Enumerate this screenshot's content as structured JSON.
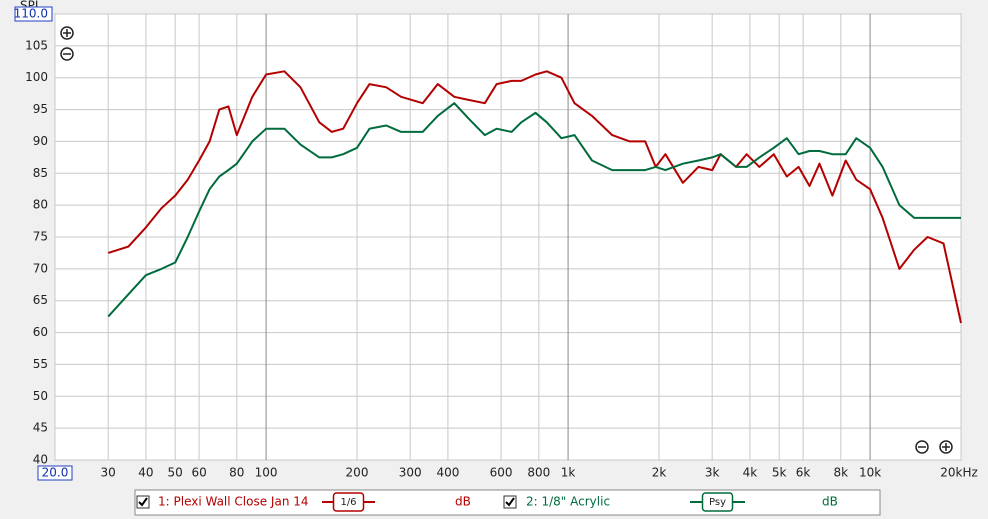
{
  "chart_data": {
    "type": "line",
    "y_label": "SPL",
    "x_scale": "log",
    "grid": true,
    "xlim": [
      20,
      20000
    ],
    "ylim": [
      40,
      110
    ],
    "xticks": [
      {
        "value": 20,
        "label": "20.0"
      },
      30,
      40,
      50,
      60,
      80,
      100,
      200,
      300,
      400,
      600,
      800,
      {
        "value": 1000,
        "label": "1k"
      },
      {
        "value": 2000,
        "label": "2k"
      },
      {
        "value": 3000,
        "label": "3k"
      },
      {
        "value": 4000,
        "label": "4k"
      },
      {
        "value": 5000,
        "label": "5k"
      },
      {
        "value": 6000,
        "label": "6k"
      },
      {
        "value": 8000,
        "label": "8k"
      },
      {
        "value": 10000,
        "label": "10k"
      },
      {
        "value": 20000,
        "label": "20kHz"
      }
    ],
    "yticks": [
      40,
      45,
      50,
      55,
      60,
      65,
      70,
      75,
      80,
      85,
      90,
      95,
      100,
      105,
      {
        "value": 110,
        "label": "110.0"
      }
    ],
    "x": [
      30,
      35,
      40,
      45,
      50,
      55,
      60,
      65,
      70,
      75,
      80,
      90,
      100,
      115,
      130,
      150,
      165,
      180,
      200,
      220,
      250,
      280,
      330,
      370,
      420,
      470,
      530,
      580,
      650,
      700,
      780,
      850,
      950,
      1050,
      1200,
      1400,
      1600,
      1800,
      1950,
      2100,
      2400,
      2700,
      3000,
      3200,
      3600,
      3900,
      4300,
      4800,
      5300,
      5800,
      6300,
      6800,
      7500,
      8300,
      9000,
      10000,
      11000,
      12500,
      14000,
      15500,
      17500,
      20000
    ],
    "series": [
      {
        "name": "1: Plexi Wall Close Jan 14",
        "color": "#b40000",
        "smoothing": "1/6",
        "unit": "dB",
        "values": [
          72.5,
          73.5,
          76.5,
          79.5,
          81.5,
          84,
          87,
          90,
          95,
          95.5,
          91,
          97,
          100.5,
          101,
          98.5,
          93,
          91.5,
          92,
          96,
          99,
          98.5,
          97,
          96,
          99,
          97,
          96.5,
          96,
          99,
          99.5,
          99.5,
          100.5,
          101,
          100,
          96,
          94,
          91,
          90,
          90,
          86,
          88,
          83.5,
          86,
          85.5,
          88,
          86,
          88,
          86,
          88,
          84.5,
          86,
          83,
          86.5,
          81.5,
          87,
          84,
          82.5,
          78,
          70,
          73,
          75,
          74,
          61.5
        ]
      },
      {
        "name": "2: 1/8\" Acrylic",
        "color": "#006b3c",
        "smoothing": "Psy",
        "unit": "dB",
        "values": [
          62.5,
          66,
          69,
          70,
          71,
          75,
          79,
          82.5,
          84.5,
          85.5,
          86.5,
          90,
          92,
          92,
          89.5,
          87.5,
          87.5,
          88,
          89,
          92,
          92.5,
          91.5,
          91.5,
          94,
          96,
          93.5,
          91,
          92,
          91.5,
          93,
          94.5,
          93,
          90.5,
          91,
          87,
          85.5,
          85.5,
          85.5,
          86,
          85.5,
          86.5,
          87,
          87.5,
          88,
          86,
          86,
          87.5,
          89,
          90.5,
          88,
          88.5,
          88.5,
          88,
          88,
          90.5,
          89,
          86,
          80,
          78,
          78,
          78,
          78
        ]
      }
    ]
  }
}
